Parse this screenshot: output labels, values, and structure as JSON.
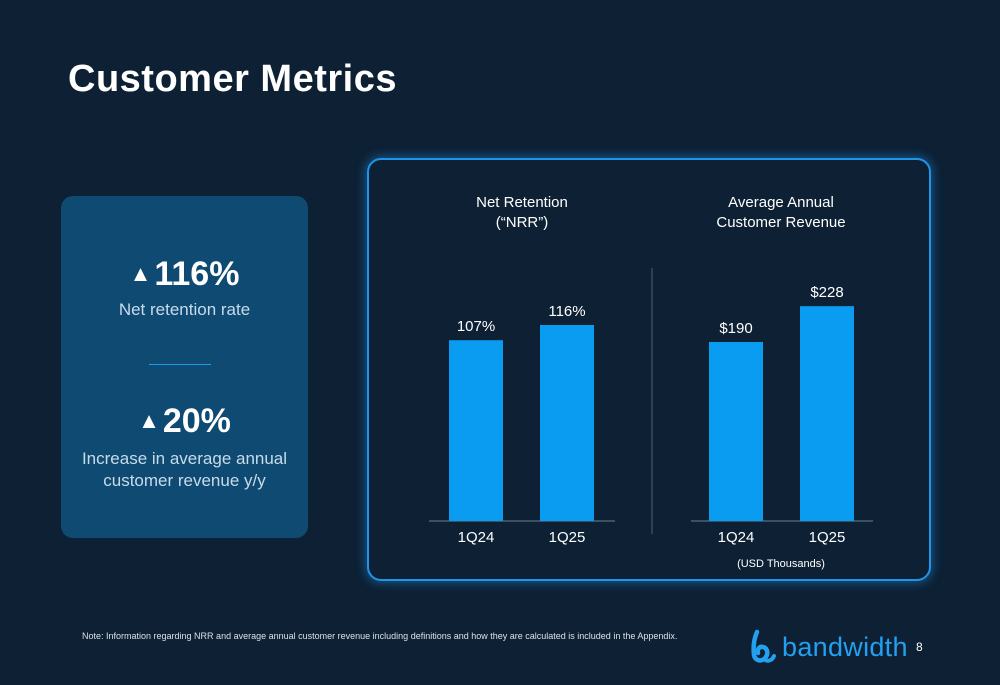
{
  "slide": {
    "title": "Customer Metrics",
    "page_number": "8",
    "note": "Note: Information regarding NRR and average annual customer revenue including definitions and how they are calculated is included in the Appendix."
  },
  "stats": [
    {
      "arrow": "▲",
      "value": "116%",
      "label": "Net retention rate"
    },
    {
      "arrow": "▲",
      "value": "20%",
      "label_line1": "Increase in average annual",
      "label_line2": "customer revenue y/y"
    }
  ],
  "logo": {
    "icon": "bandwidth-logo-icon",
    "text": "bandwidth"
  },
  "colors": {
    "background": "#0d2034",
    "card": "#0f4a73",
    "bar": "#0a9cf0",
    "accent": "#1f94e8"
  },
  "chart_data": [
    {
      "type": "bar",
      "title_line1": "Net Retention",
      "title_line2": "(“NRR”)",
      "categories": [
        "1Q24",
        "1Q25"
      ],
      "values": [
        107,
        116
      ],
      "labels": [
        "107%",
        "116%"
      ],
      "ylim": [
        0,
        145
      ]
    },
    {
      "type": "bar",
      "title_line1": "Average Annual",
      "title_line2": "Customer Revenue",
      "categories": [
        "1Q24",
        "1Q25"
      ],
      "values": [
        190,
        228
      ],
      "labels": [
        "$190",
        "$228"
      ],
      "unit_note": "(USD Thousands)",
      "ylim": [
        0,
        260
      ]
    }
  ]
}
